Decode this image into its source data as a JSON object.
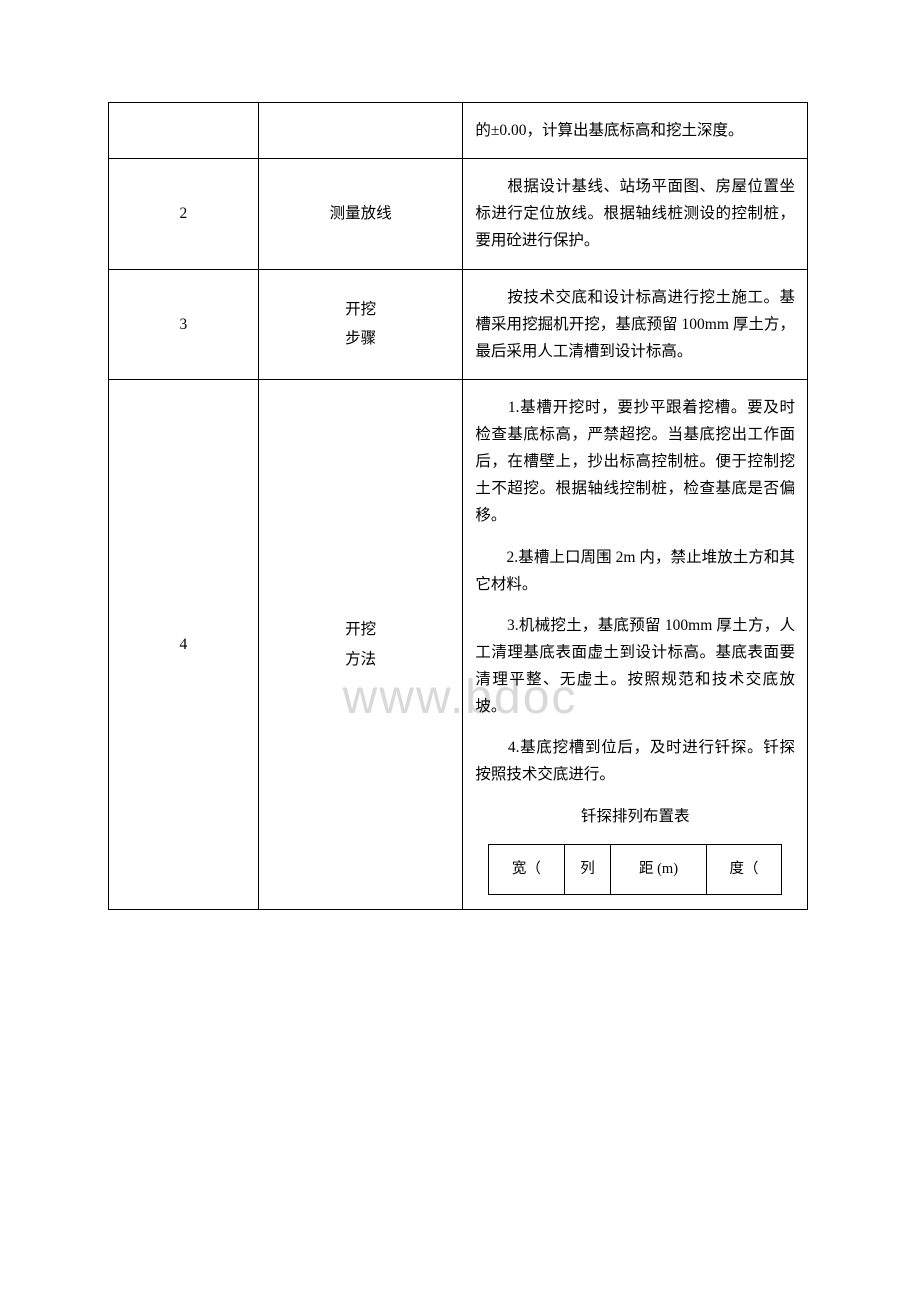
{
  "watermark": "www.bdoc",
  "table": {
    "border_color": "#000000",
    "background_color": "#ffffff",
    "text_color": "#000000",
    "font_size": 15.5,
    "nested_font_size": 14.5,
    "rows": [
      {
        "num": "",
        "label": "",
        "desc": [
          "的±0.00，计算出基底标高和挖土深度。"
        ]
      },
      {
        "num": "2",
        "label": "测量放线",
        "desc": [
          "　　根据设计基线、站场平面图、房屋位置坐标进行定位放线。根据轴线桩测设的控制桩，要用砼进行保护。"
        ]
      },
      {
        "num": "3",
        "label_lines": [
          "开挖",
          "步骤"
        ],
        "desc": [
          "　　按技术交底和设计标高进行挖土施工。基槽采用挖掘机开挖，基底预留 100mm 厚土方，最后采用人工清槽到设计标高。"
        ]
      },
      {
        "num": "4",
        "label_lines": [
          "开挖",
          "方法"
        ],
        "desc_paragraphs": [
          "　　1.基槽开挖时，要抄平跟着挖槽。要及时检查基底标高，严禁超挖。当基底挖出工作面后，在槽壁上，抄出标高控制桩。便于控制挖土不超挖。根据轴线控制桩，检查基底是否偏移。",
          "　　2.基槽上口周围 2m 内，禁止堆放土方和其它材料。",
          "　　3.机械挖土，基底预留 100mm 厚土方，人工清理基底表面虚土到设计标高。基底表面要清理平整、无虚土。按照规范和技术交底放坡。",
          "　　4.基底挖槽到位后，及时进行钎探。钎探按照技术交底进行。"
        ],
        "nested_title": "钎探排列布置表",
        "nested_headers": [
          "宽（",
          "列",
          "距 (m)",
          "度（"
        ]
      }
    ]
  }
}
